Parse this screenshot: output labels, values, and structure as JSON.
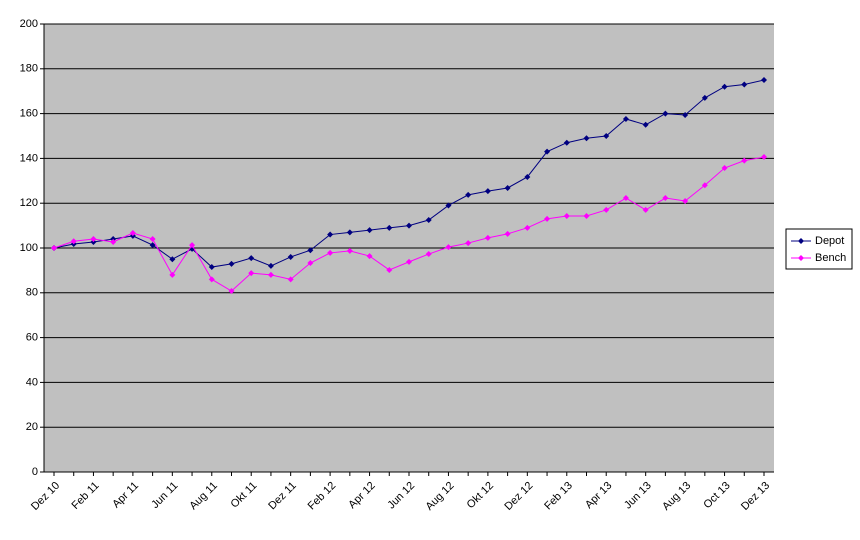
{
  "chart_data": {
    "type": "line",
    "categories": [
      "Dez 10",
      null,
      "Feb 11",
      null,
      "Apr 11",
      null,
      "Jun 11",
      null,
      "Aug 11",
      null,
      "Okt 11",
      null,
      "Dez 11",
      null,
      "Feb 12",
      null,
      "Apr 12",
      null,
      "Jun 12",
      null,
      "Aug 12",
      null,
      "Okt 12",
      null,
      "Dez 12",
      null,
      "Feb 13",
      null,
      "Apr 13",
      null,
      "Jun 13",
      null,
      "Aug 13",
      null,
      "Oct 13",
      null,
      "Dez 13"
    ],
    "series": [
      {
        "name": "Depot",
        "color": "#000080",
        "values": [
          100,
          101.8,
          102.7,
          104,
          105.4,
          101.3,
          95,
          99.6,
          91.5,
          92.9,
          95.5,
          92,
          96,
          99,
          106,
          107,
          108,
          109,
          110,
          112.5,
          119,
          123.7,
          125.4,
          126.8,
          131.7,
          143,
          147,
          149,
          150,
          157.6,
          155,
          160,
          159.4,
          167,
          172,
          173,
          175
        ]
      },
      {
        "name": "Bench",
        "color": "#ff00ff",
        "values": [
          100,
          103,
          104,
          102.7,
          106.7,
          104,
          88,
          101.3,
          86,
          80.8,
          88.8,
          88,
          86,
          93.3,
          97.8,
          98.7,
          96.4,
          90.2,
          93.8,
          97.3,
          100.4,
          102.2,
          104.5,
          106.3,
          109,
          113,
          114.3,
          114.3,
          117,
          122.3,
          117,
          122.3,
          121,
          128,
          135.7,
          139,
          140.6
        ]
      }
    ],
    "ylim": [
      0,
      200
    ],
    "yticks": [
      0,
      20,
      40,
      60,
      80,
      100,
      120,
      140,
      160,
      180,
      200
    ],
    "grid": true,
    "legend": "right"
  }
}
